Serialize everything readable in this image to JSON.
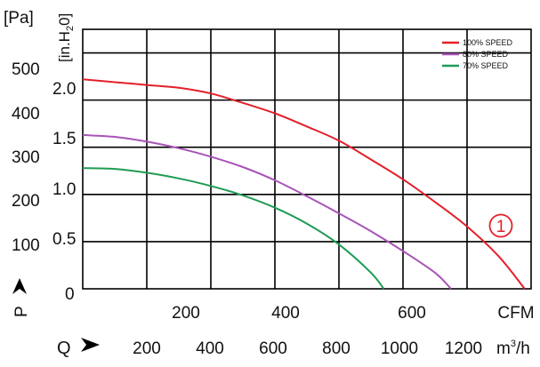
{
  "chart_data": {
    "type": "line",
    "title": "",
    "units": {
      "pa": "[Pa]",
      "inh2o": "[in.H",
      "inh2o_sub": "2",
      "inh2o_tail": "0]",
      "cfm": "CFM",
      "m3h": "m",
      "m3h_sup": "3",
      "m3h_tail": "/h"
    },
    "axis_letters": {
      "pressure": "P",
      "flow": "Q"
    },
    "pa_ticks": [
      "500",
      "400",
      "300",
      "200",
      "100"
    ],
    "pa_tick_values": [
      500,
      400,
      300,
      200,
      100
    ],
    "inh2o_ticks": [
      "2.0",
      "1.5",
      "1.0",
      "0.5",
      "0"
    ],
    "inh2o_tick_values": [
      2.0,
      1.5,
      1.0,
      0.5,
      0
    ],
    "cfm_ticks": [
      "200",
      "400",
      "600"
    ],
    "cfm_tick_values": [
      200,
      400,
      600
    ],
    "m3h_ticks": [
      "200",
      "400",
      "600",
      "800",
      "1000",
      "1200"
    ],
    "m3h_tick_values": [
      200,
      400,
      600,
      800,
      1000,
      1200
    ],
    "xlim_m3h": [
      0,
      1400
    ],
    "ylim_inh2o": [
      0,
      2.75
    ],
    "grid": true,
    "legend_position": "top-right",
    "curve_label": "1",
    "series": [
      {
        "name": "100% SPEED",
        "color": "#e3202a",
        "x": [
          0,
          100,
          200,
          300,
          400,
          500,
          600,
          700,
          800,
          900,
          1000,
          1100,
          1200,
          1300,
          1380
        ],
        "y": [
          2.22,
          2.19,
          2.16,
          2.13,
          2.07,
          1.97,
          1.86,
          1.72,
          1.57,
          1.37,
          1.16,
          0.92,
          0.66,
          0.34,
          0.0
        ]
      },
      {
        "name": "80% SPEED",
        "color": "#a853b8",
        "x": [
          0,
          100,
          200,
          300,
          400,
          500,
          600,
          700,
          800,
          900,
          1000,
          1100,
          1150
        ],
        "y": [
          1.63,
          1.61,
          1.56,
          1.49,
          1.4,
          1.29,
          1.15,
          0.98,
          0.8,
          0.61,
          0.4,
          0.17,
          0.0
        ]
      },
      {
        "name": "70% SPEED",
        "color": "#1f9b55",
        "x": [
          0,
          100,
          200,
          300,
          400,
          500,
          600,
          700,
          800,
          900,
          940
        ],
        "y": [
          1.28,
          1.27,
          1.23,
          1.17,
          1.09,
          0.99,
          0.86,
          0.69,
          0.47,
          0.17,
          0.0
        ]
      }
    ]
  }
}
